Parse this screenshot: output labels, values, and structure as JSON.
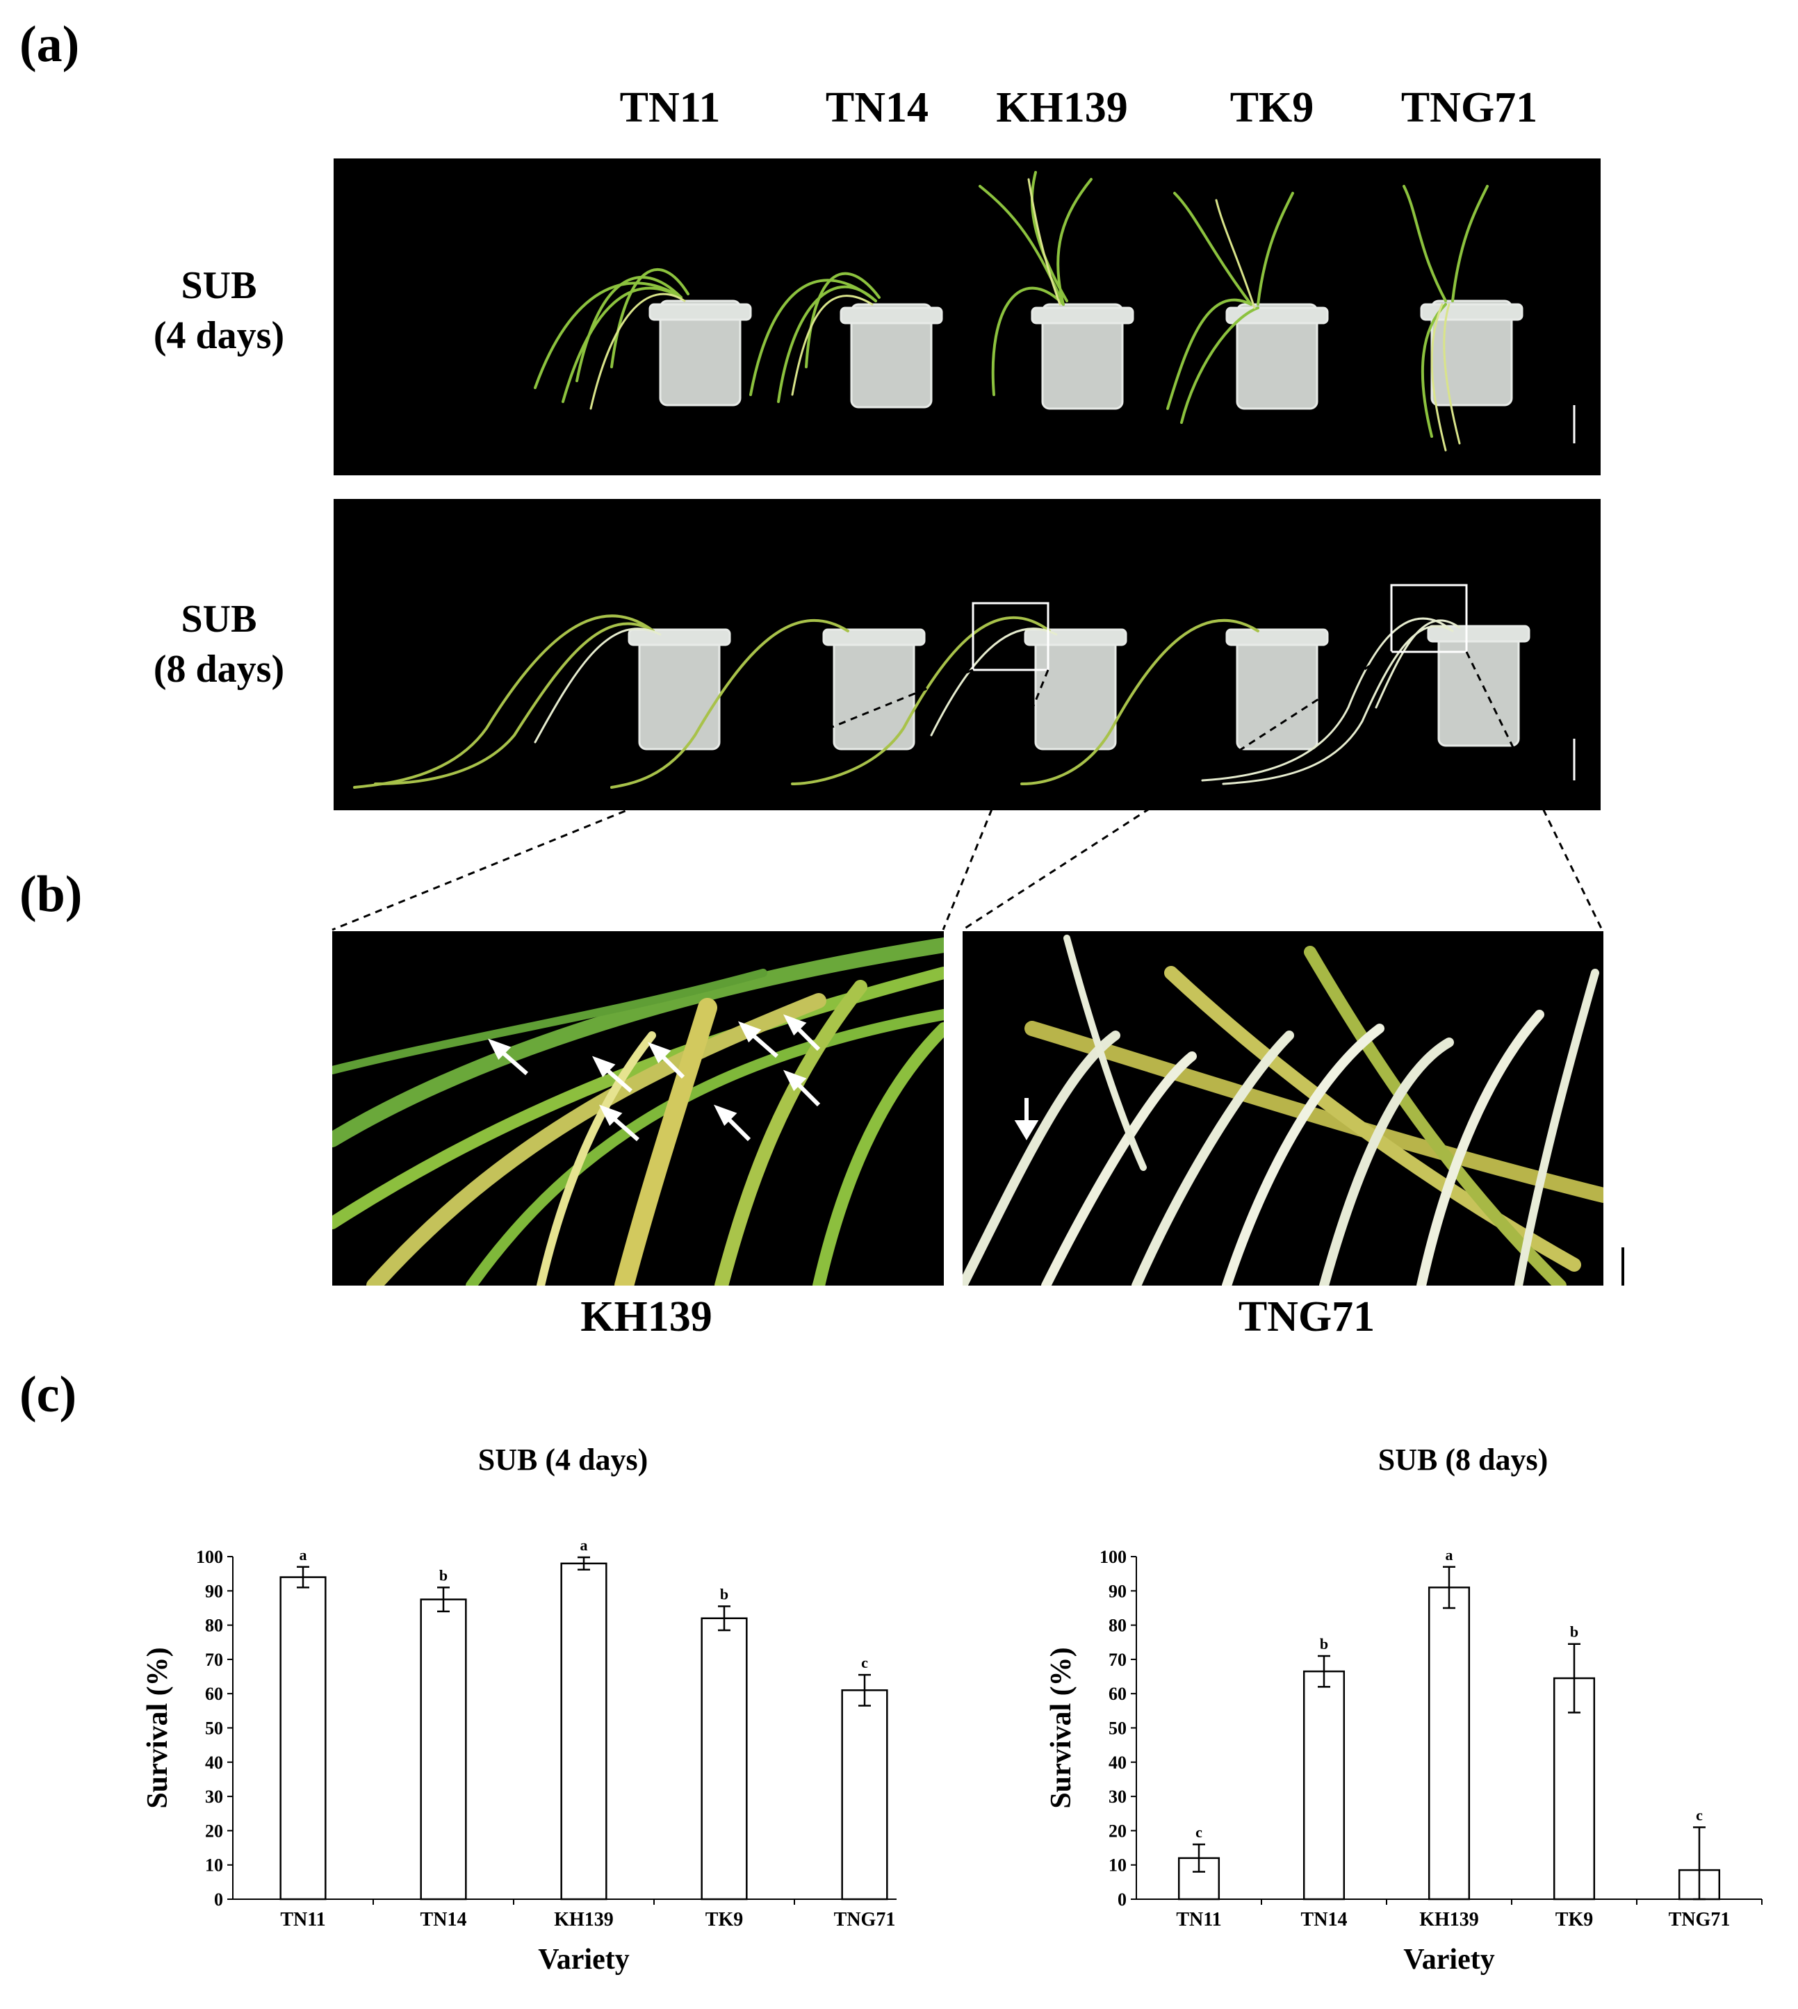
{
  "panels": {
    "a": "(a)",
    "b": "(b)",
    "c": "(c)"
  },
  "panel_a": {
    "varieties": [
      "TN11",
      "TN14",
      "KH139",
      "TK9",
      "TNG71"
    ],
    "rows": [
      {
        "line1": "SUB",
        "line2": "(4 days)"
      },
      {
        "line1": "SUB",
        "line2": "(8 days)"
      }
    ]
  },
  "panel_b": {
    "left_label": "KH139",
    "right_label": "TNG71"
  },
  "colors": {
    "background": "#000000",
    "leaf_green": "#7fb83a",
    "leaf_yellow": "#c8c65a",
    "leaf_white": "#e8ecd8",
    "pot": "#c9cdc9"
  },
  "chart_data": [
    {
      "type": "bar",
      "title": "SUB (4 days)",
      "xlabel": "Variety",
      "ylabel": "Survival (%)",
      "categories": [
        "TN11",
        "TN14",
        "KH139",
        "TK9",
        "TNG71"
      ],
      "values": [
        94,
        87.5,
        98,
        82,
        61
      ],
      "errors": [
        3,
        3.5,
        1.8,
        3.5,
        4.5
      ],
      "letters": [
        "a",
        "b",
        "a",
        "b",
        "c"
      ],
      "ylim": [
        0,
        100
      ],
      "yticks": [
        "0",
        "10",
        "20",
        "30",
        "40",
        "50",
        "60",
        "70",
        "80",
        "90",
        "100"
      ],
      "grid": false
    },
    {
      "type": "bar",
      "title": "SUB (8 days)",
      "xlabel": "Variety",
      "ylabel": "Survival (%)",
      "categories": [
        "TN11",
        "TN14",
        "KH139",
        "TK9",
        "TNG71"
      ],
      "values": [
        12,
        66.5,
        91,
        64.5,
        8.5
      ],
      "errors": [
        4,
        4.5,
        6,
        10,
        12.5
      ],
      "letters": [
        "c",
        "b",
        "a",
        "b",
        "c"
      ],
      "ylim": [
        0,
        100
      ],
      "yticks": [
        "0",
        "10",
        "20",
        "30",
        "40",
        "50",
        "60",
        "70",
        "80",
        "90",
        "100"
      ],
      "grid": false
    }
  ]
}
